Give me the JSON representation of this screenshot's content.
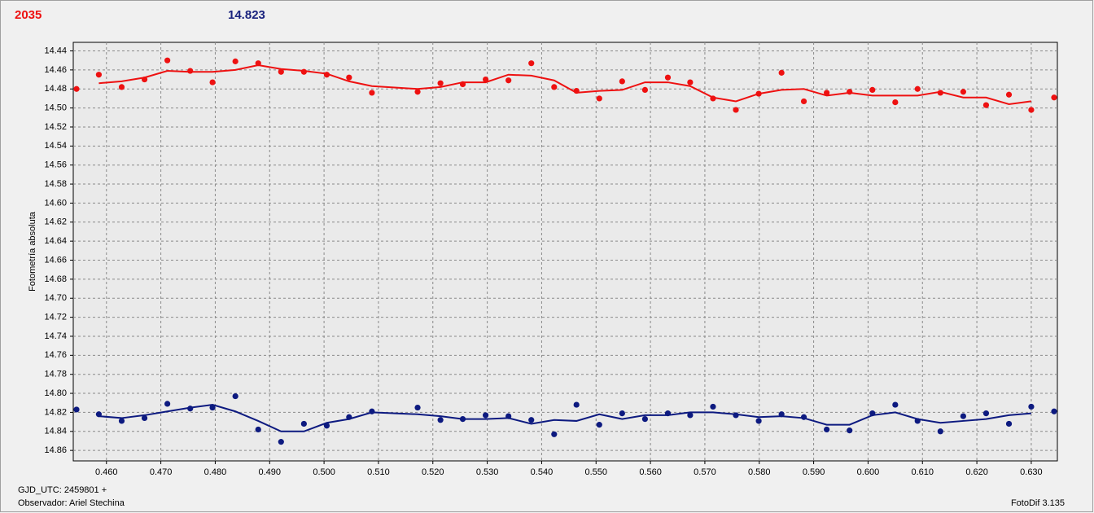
{
  "chart_data": {
    "type": "scatter",
    "annotations": [
      {
        "text": "2035",
        "color": "#ee1111"
      },
      {
        "text": "14.823",
        "color": "#1a237e"
      }
    ],
    "ylabel": "Fotometría absoluta",
    "footer_left": [
      "GJD_UTC: 2459801 +",
      "Observador: Ariel Stechina"
    ],
    "footer_right": "FotoDif 3.135",
    "grid": true,
    "xlim": [
      0.4539,
      0.6348
    ],
    "ylim": [
      14.871,
      14.431
    ],
    "xticks": [
      {
        "value": 0.46,
        "label": "0.460"
      },
      {
        "value": 0.47,
        "label": "0.470"
      },
      {
        "value": 0.48,
        "label": "0.480"
      },
      {
        "value": 0.49,
        "label": "0.490"
      },
      {
        "value": 0.5,
        "label": "0.500"
      },
      {
        "value": 0.51,
        "label": "0.510"
      },
      {
        "value": 0.52,
        "label": "0.520"
      },
      {
        "value": 0.53,
        "label": "0.530"
      },
      {
        "value": 0.54,
        "label": "0.540"
      },
      {
        "value": 0.55,
        "label": "0.550"
      },
      {
        "value": 0.56,
        "label": "0.560"
      },
      {
        "value": 0.57,
        "label": "0.570"
      },
      {
        "value": 0.58,
        "label": "0.580"
      },
      {
        "value": 0.59,
        "label": "0.590"
      },
      {
        "value": 0.6,
        "label": "0.600"
      },
      {
        "value": 0.61,
        "label": "0.610"
      },
      {
        "value": 0.62,
        "label": "0.620"
      },
      {
        "value": 0.63,
        "label": "0.630"
      }
    ],
    "yticks": [
      14.44,
      14.46,
      14.48,
      {
        "value": 14.5,
        "label": "14.50"
      },
      14.52,
      14.54,
      14.56,
      14.58,
      {
        "value": 14.6,
        "label": "14.60"
      },
      14.62,
      14.64,
      14.66,
      14.68,
      {
        "value": 14.7,
        "label": "14.70"
      },
      14.72,
      14.74,
      14.76,
      14.78,
      {
        "value": 14.8,
        "label": "14.80"
      },
      14.82,
      14.84,
      14.86
    ],
    "series": [
      {
        "type": "scatter",
        "color": "#ee1111",
        "x": [
          0.4545,
          0.4586,
          0.4628,
          0.467,
          0.4712,
          0.4754,
          0.4795,
          0.4837,
          0.4879,
          0.4921,
          0.4963,
          0.5005,
          0.5046,
          0.5088,
          0.5172,
          0.5214,
          0.5255,
          0.5297,
          0.5339,
          0.5381,
          0.5423,
          0.5464,
          0.5506,
          0.5548,
          0.559,
          0.5632,
          0.5673,
          0.5715,
          0.5757,
          0.5799,
          0.5841,
          0.5882,
          0.5924,
          0.5966,
          0.6008,
          0.605,
          0.6091,
          0.6133,
          0.6175,
          0.6217,
          0.6259,
          0.63,
          0.6342
        ],
        "values": [
          14.48,
          14.465,
          14.478,
          14.47,
          14.45,
          14.461,
          14.473,
          14.451,
          14.453,
          14.462,
          14.462,
          14.465,
          14.468,
          14.484,
          14.483,
          14.474,
          14.475,
          14.47,
          14.471,
          14.453,
          14.478,
          14.482,
          14.49,
          14.472,
          14.481,
          14.468,
          14.473,
          14.49,
          14.502,
          14.485,
          14.463,
          14.493,
          14.484,
          14.483,
          14.481,
          14.494,
          14.48,
          14.484,
          14.483,
          14.497,
          14.486,
          14.502,
          14.489
        ]
      },
      {
        "type": "line",
        "color": "#ee1111",
        "x": [
          0.4586,
          0.4628,
          0.467,
          0.4712,
          0.4754,
          0.4795,
          0.4837,
          0.4879,
          0.4921,
          0.4963,
          0.5005,
          0.5046,
          0.5088,
          0.5172,
          0.5214,
          0.5255,
          0.5297,
          0.5339,
          0.5381,
          0.5423,
          0.5464,
          0.5506,
          0.5548,
          0.559,
          0.5632,
          0.5673,
          0.5715,
          0.5757,
          0.5799,
          0.5841,
          0.5882,
          0.5924,
          0.5966,
          0.6008,
          0.605,
          0.6091,
          0.6133,
          0.6175,
          0.6217,
          0.6259,
          0.63
        ],
        "values": [
          14.474,
          14.472,
          14.468,
          14.461,
          14.462,
          14.462,
          14.46,
          14.455,
          14.459,
          14.461,
          14.464,
          14.472,
          14.477,
          14.48,
          14.478,
          14.473,
          14.473,
          14.465,
          14.466,
          14.471,
          14.484,
          14.482,
          14.481,
          14.473,
          14.473,
          14.477,
          14.489,
          14.493,
          14.485,
          14.481,
          14.48,
          14.487,
          14.484,
          14.487,
          14.487,
          14.487,
          14.483,
          14.489,
          14.489,
          14.496,
          14.493
        ]
      },
      {
        "type": "scatter",
        "color": "#0d1a80",
        "x": [
          0.4545,
          0.4586,
          0.4628,
          0.467,
          0.4712,
          0.4754,
          0.4795,
          0.4837,
          0.4879,
          0.4921,
          0.4963,
          0.5005,
          0.5046,
          0.5088,
          0.5172,
          0.5214,
          0.5255,
          0.5297,
          0.5339,
          0.5381,
          0.5423,
          0.5464,
          0.5506,
          0.5548,
          0.559,
          0.5632,
          0.5673,
          0.5715,
          0.5757,
          0.5799,
          0.5841,
          0.5882,
          0.5924,
          0.5966,
          0.6008,
          0.605,
          0.6091,
          0.6133,
          0.6175,
          0.6217,
          0.6259,
          0.63,
          0.6342
        ],
        "values": [
          14.817,
          14.822,
          14.829,
          14.826,
          14.811,
          14.816,
          14.815,
          14.803,
          14.838,
          14.851,
          14.832,
          14.834,
          14.825,
          14.819,
          14.815,
          14.828,
          14.827,
          14.823,
          14.824,
          14.828,
          14.843,
          14.812,
          14.833,
          14.821,
          14.827,
          14.821,
          14.823,
          14.814,
          14.823,
          14.829,
          14.822,
          14.825,
          14.838,
          14.839,
          14.821,
          14.812,
          14.829,
          14.84,
          14.824,
          14.821,
          14.832,
          14.814,
          14.819
        ]
      },
      {
        "type": "line",
        "color": "#0d1a80",
        "x": [
          0.4586,
          0.4628,
          0.467,
          0.4712,
          0.4754,
          0.4795,
          0.4837,
          0.4879,
          0.4921,
          0.4963,
          0.5005,
          0.5046,
          0.5088,
          0.5172,
          0.5214,
          0.5255,
          0.5297,
          0.5339,
          0.5381,
          0.5423,
          0.5464,
          0.5506,
          0.5548,
          0.559,
          0.5632,
          0.5673,
          0.5715,
          0.5757,
          0.5799,
          0.5841,
          0.5882,
          0.5924,
          0.5966,
          0.6008,
          0.605,
          0.6091,
          0.6133,
          0.6175,
          0.6217,
          0.6259,
          0.63
        ],
        "values": [
          14.824,
          14.826,
          14.823,
          14.819,
          14.815,
          14.812,
          14.819,
          14.829,
          14.84,
          14.84,
          14.831,
          14.827,
          14.82,
          14.822,
          14.824,
          14.827,
          14.827,
          14.826,
          14.832,
          14.828,
          14.829,
          14.822,
          14.827,
          14.823,
          14.823,
          14.82,
          14.82,
          14.822,
          14.825,
          14.824,
          14.826,
          14.833,
          14.833,
          14.823,
          14.82,
          14.827,
          14.831,
          14.829,
          14.827,
          14.823,
          14.821
        ]
      }
    ]
  }
}
